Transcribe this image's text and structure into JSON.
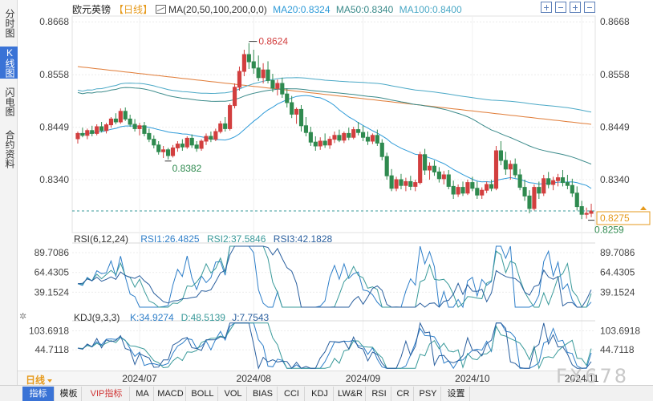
{
  "left_rail": {
    "tabs": [
      {
        "label": "分时图",
        "active": false
      },
      {
        "label": "K线图",
        "active": true
      },
      {
        "label": "闪电图",
        "active": false
      },
      {
        "label": "合约资料",
        "active": false
      }
    ]
  },
  "header": {
    "instrument": "欧元英镑",
    "period": "【日线】",
    "ma_params": "MA(20,50,100,200,0,0)",
    "ma20": "MA20:0.8324",
    "ma50": "MA50:0.8340",
    "ma100": "MA100:0.8400"
  },
  "window_tools": [
    "plus",
    "minus",
    "plus",
    "minus"
  ],
  "colors": {
    "up": "#d23f3f",
    "down": "#2f8a4f",
    "ma20": "#2f9bd8",
    "ma50": "#3a8a8a",
    "ma100": "#4aa8c6",
    "ma200": "#e07b36",
    "rsi1": "#2f7fc9",
    "rsi2": "#3a9a9a",
    "rsi3": "#2a5f9e",
    "kdj_k": "#2f7fc9",
    "kdj_d": "#3a9a9a",
    "kdj_j": "#2a5f9e",
    "label_high": "#d23f3f",
    "label_low": "#2f8a4f",
    "last_price_box": "#e69a1c"
  },
  "chart_data": [
    {
      "type": "candlestick",
      "title": "欧元英镑",
      "period": "日线",
      "ylim": [
        0.823,
        0.868
      ],
      "yticks": [
        0.8668,
        0.8558,
        0.8449,
        0.834
      ],
      "ytick_labels": [
        "0.8668",
        "0.8558",
        "0.8449",
        "0.8340"
      ],
      "xticks": [
        "2024/07",
        "2024/08",
        "2024/09",
        "2024/10",
        "2024/11"
      ],
      "xtick_index": [
        13,
        37,
        60,
        83,
        106
      ],
      "high_label": "0.8624",
      "high_index": 36,
      "high_value": 0.8624,
      "low_label_1": "0.8382",
      "low_index_1": 19,
      "low_value_1": 0.8382,
      "low_label_2": "0.8259",
      "low_index_2": 108,
      "low_value_2": 0.8259,
      "last_price": "0.8275",
      "last_value": 0.8275,
      "grid": true,
      "ma_periods": [
        20,
        50,
        100,
        200
      ],
      "ma_last_values": {
        "ma20": 0.8324,
        "ma50": 0.834,
        "ma100": 0.84
      },
      "ma200_approx": [
        0.8575,
        0.8455
      ],
      "candles": [
        [
          0.8425,
          0.844,
          0.8415,
          0.8436
        ],
        [
          0.8436,
          0.8448,
          0.8428,
          0.8432
        ],
        [
          0.8432,
          0.8446,
          0.8424,
          0.8442
        ],
        [
          0.8442,
          0.8452,
          0.843,
          0.8436
        ],
        [
          0.8436,
          0.8455,
          0.8432,
          0.845
        ],
        [
          0.845,
          0.846,
          0.8438,
          0.8442
        ],
        [
          0.8442,
          0.8458,
          0.8436,
          0.8454
        ],
        [
          0.8454,
          0.847,
          0.8448,
          0.8466
        ],
        [
          0.8466,
          0.8478,
          0.8455,
          0.846
        ],
        [
          0.846,
          0.8488,
          0.8456,
          0.8482
        ],
        [
          0.8482,
          0.849,
          0.8462,
          0.8466
        ],
        [
          0.8466,
          0.8475,
          0.845,
          0.8455
        ],
        [
          0.8455,
          0.8466,
          0.844,
          0.8446
        ],
        [
          0.8446,
          0.8458,
          0.8432,
          0.8452
        ],
        [
          0.8452,
          0.846,
          0.843,
          0.8436
        ],
        [
          0.8436,
          0.8446,
          0.8418,
          0.8424
        ],
        [
          0.8424,
          0.8432,
          0.8405,
          0.8412
        ],
        [
          0.8412,
          0.842,
          0.8392,
          0.8398
        ],
        [
          0.8398,
          0.841,
          0.8385,
          0.8402
        ],
        [
          0.8402,
          0.8406,
          0.8382,
          0.839
        ],
        [
          0.839,
          0.8412,
          0.8386,
          0.8406
        ],
        [
          0.8406,
          0.842,
          0.8398,
          0.8414
        ],
        [
          0.8414,
          0.8424,
          0.84,
          0.8408
        ],
        [
          0.8408,
          0.843,
          0.8404,
          0.8426
        ],
        [
          0.8426,
          0.8434,
          0.8406,
          0.8412
        ],
        [
          0.8412,
          0.842,
          0.8398,
          0.8405
        ],
        [
          0.8405,
          0.8424,
          0.84,
          0.842
        ],
        [
          0.842,
          0.8436,
          0.8412,
          0.843
        ],
        [
          0.843,
          0.844,
          0.8418,
          0.8424
        ],
        [
          0.8424,
          0.8446,
          0.842,
          0.844
        ],
        [
          0.844,
          0.8462,
          0.8436,
          0.8456
        ],
        [
          0.8456,
          0.847,
          0.844,
          0.8446
        ],
        [
          0.8446,
          0.8498,
          0.8442,
          0.8494
        ],
        [
          0.8494,
          0.854,
          0.8488,
          0.8532
        ],
        [
          0.8532,
          0.8575,
          0.8525,
          0.8565
        ],
        [
          0.8565,
          0.861,
          0.8555,
          0.86
        ],
        [
          0.86,
          0.8624,
          0.857,
          0.8585
        ],
        [
          0.8585,
          0.861,
          0.856,
          0.8572
        ],
        [
          0.8572,
          0.8598,
          0.8545,
          0.8552
        ],
        [
          0.8552,
          0.8582,
          0.854,
          0.8568
        ],
        [
          0.8568,
          0.8586,
          0.854,
          0.8546
        ],
        [
          0.8546,
          0.856,
          0.8522,
          0.853
        ],
        [
          0.853,
          0.8548,
          0.8515,
          0.854
        ],
        [
          0.854,
          0.8552,
          0.851,
          0.8518
        ],
        [
          0.8518,
          0.853,
          0.849,
          0.85
        ],
        [
          0.85,
          0.8514,
          0.8468,
          0.8476
        ],
        [
          0.8476,
          0.849,
          0.8456,
          0.8486
        ],
        [
          0.8486,
          0.8495,
          0.844,
          0.8452
        ],
        [
          0.8452,
          0.847,
          0.843,
          0.8438
        ],
        [
          0.8438,
          0.845,
          0.841,
          0.8418
        ],
        [
          0.8418,
          0.843,
          0.84,
          0.841
        ],
        [
          0.841,
          0.8428,
          0.8402,
          0.842
        ],
        [
          0.842,
          0.8436,
          0.8406,
          0.8412
        ],
        [
          0.8412,
          0.843,
          0.8404,
          0.8424
        ],
        [
          0.8424,
          0.844,
          0.8416,
          0.8432
        ],
        [
          0.8432,
          0.8444,
          0.8418,
          0.8422
        ],
        [
          0.8422,
          0.844,
          0.8416,
          0.8436
        ],
        [
          0.8436,
          0.8448,
          0.8422,
          0.8428
        ],
        [
          0.8428,
          0.845,
          0.8424,
          0.8444
        ],
        [
          0.8444,
          0.846,
          0.8432,
          0.8438
        ],
        [
          0.8438,
          0.8452,
          0.842,
          0.8428
        ],
        [
          0.8428,
          0.844,
          0.8412,
          0.842
        ],
        [
          0.842,
          0.8436,
          0.8414,
          0.8432
        ],
        [
          0.8432,
          0.8444,
          0.841,
          0.8416
        ],
        [
          0.8416,
          0.8424,
          0.838,
          0.8388
        ],
        [
          0.8388,
          0.8396,
          0.834,
          0.8348
        ],
        [
          0.8348,
          0.8362,
          0.8316,
          0.8322
        ],
        [
          0.8322,
          0.8346,
          0.8316,
          0.834
        ],
        [
          0.834,
          0.8352,
          0.832,
          0.8328
        ],
        [
          0.8328,
          0.8344,
          0.8316,
          0.8336
        ],
        [
          0.8336,
          0.8348,
          0.8318,
          0.8326
        ],
        [
          0.8326,
          0.834,
          0.8316,
          0.8334
        ],
        [
          0.8334,
          0.8398,
          0.833,
          0.8392
        ],
        [
          0.8392,
          0.8404,
          0.835,
          0.836
        ],
        [
          0.836,
          0.8376,
          0.834,
          0.8368
        ],
        [
          0.8368,
          0.838,
          0.8348,
          0.8356
        ],
        [
          0.8356,
          0.8366,
          0.8334,
          0.8342
        ],
        [
          0.8342,
          0.8358,
          0.833,
          0.835
        ],
        [
          0.835,
          0.836,
          0.832,
          0.8326
        ],
        [
          0.8326,
          0.8338,
          0.83,
          0.831
        ],
        [
          0.831,
          0.833,
          0.8304,
          0.8324
        ],
        [
          0.8324,
          0.8336,
          0.8306,
          0.8312
        ],
        [
          0.8312,
          0.834,
          0.8308,
          0.8334
        ],
        [
          0.8334,
          0.8346,
          0.8316,
          0.8322
        ],
        [
          0.8322,
          0.8336,
          0.83,
          0.8308
        ],
        [
          0.8308,
          0.8324,
          0.83,
          0.8318
        ],
        [
          0.8318,
          0.8336,
          0.8312,
          0.833
        ],
        [
          0.833,
          0.834,
          0.8316,
          0.8322
        ],
        [
          0.8322,
          0.841,
          0.8318,
          0.84
        ],
        [
          0.84,
          0.842,
          0.837,
          0.838
        ],
        [
          0.838,
          0.8398,
          0.835,
          0.8362
        ],
        [
          0.8362,
          0.838,
          0.834,
          0.8372
        ],
        [
          0.8372,
          0.8384,
          0.8344,
          0.835
        ],
        [
          0.835,
          0.8362,
          0.8318,
          0.8324
        ],
        [
          0.8324,
          0.834,
          0.8296,
          0.8306
        ],
        [
          0.8306,
          0.8318,
          0.827,
          0.828
        ],
        [
          0.828,
          0.833,
          0.8276,
          0.8324
        ],
        [
          0.8324,
          0.8336,
          0.83,
          0.8312
        ],
        [
          0.8312,
          0.835,
          0.8306,
          0.8342
        ],
        [
          0.8342,
          0.8356,
          0.8322,
          0.833
        ],
        [
          0.833,
          0.8346,
          0.8318,
          0.8338
        ],
        [
          0.8338,
          0.8352,
          0.8326,
          0.8344
        ],
        [
          0.8344,
          0.836,
          0.8326,
          0.8334
        ],
        [
          0.8334,
          0.835,
          0.832,
          0.8328
        ],
        [
          0.8328,
          0.8342,
          0.8304,
          0.8312
        ],
        [
          0.8312,
          0.8326,
          0.8276,
          0.8284
        ],
        [
          0.8284,
          0.8296,
          0.8258,
          0.8268
        ],
        [
          0.8268,
          0.8282,
          0.8259,
          0.827
        ],
        [
          0.827,
          0.829,
          0.8262,
          0.8275
        ]
      ]
    },
    {
      "type": "line",
      "title": "RSI(6,12,24)",
      "series": [
        {
          "name": "RSI1:26.4825",
          "last": 26.4825
        },
        {
          "name": "RSI2:37.5846",
          "last": 37.5846
        },
        {
          "name": "RSI3:42.1828",
          "last": 42.1828
        }
      ],
      "yticks": [
        89.7086,
        64.4305,
        39.1524
      ],
      "ytick_labels": [
        "89.7086",
        "64.4305",
        "39.1524"
      ],
      "ylim": [
        18,
        100
      ]
    },
    {
      "type": "line",
      "title": "KDJ(9,3,3)",
      "series": [
        {
          "name": "K:34.9274",
          "last": 34.9274
        },
        {
          "name": "D:48.5139",
          "last": 48.5139
        },
        {
          "name": "J:7.7543",
          "last": 7.7543
        }
      ],
      "yticks": [
        103.6918,
        44.7118
      ],
      "ytick_labels": [
        "103.6918",
        "44.7118"
      ],
      "ylim": [
        -15,
        130
      ]
    }
  ],
  "date_axis": {
    "period_tab": "日线"
  },
  "bottom_tabs": [
    {
      "label": "指标",
      "active": true,
      "vip": false
    },
    {
      "label": "模板",
      "active": false,
      "vip": false
    },
    {
      "label": "VIP指标",
      "active": false,
      "vip": true
    },
    {
      "label": "MA",
      "active": false,
      "vip": false
    },
    {
      "label": "MACD",
      "active": false,
      "vip": false
    },
    {
      "label": "BOLL",
      "active": false,
      "vip": false
    },
    {
      "label": "VOL",
      "active": false,
      "vip": false
    },
    {
      "label": "BIAS",
      "active": false,
      "vip": false
    },
    {
      "label": "CCI",
      "active": false,
      "vip": false
    },
    {
      "label": "KDJ",
      "active": false,
      "vip": false
    },
    {
      "label": "LW&R",
      "active": false,
      "vip": false
    },
    {
      "label": "RSI",
      "active": false,
      "vip": false
    },
    {
      "label": "CR",
      "active": false,
      "vip": false
    },
    {
      "label": "PSY",
      "active": false,
      "vip": false
    },
    {
      "label": "设置",
      "active": false,
      "vip": false
    }
  ],
  "watermark": "FX678"
}
